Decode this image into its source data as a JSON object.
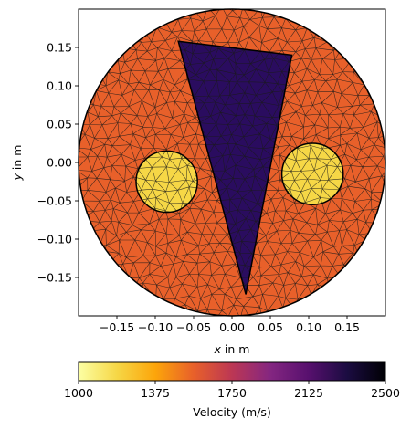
{
  "chart_data": {
    "type": "heatmap",
    "title": "",
    "xlabel": "x in m",
    "ylabel": "y in m",
    "xlim": [
      -0.2,
      0.2
    ],
    "ylim": [
      -0.2,
      0.2
    ],
    "x_ticks": [
      -0.15,
      -0.1,
      -0.05,
      0.0,
      0.05,
      0.1,
      0.15
    ],
    "x_tick_labels": [
      "−0.15",
      "−0.10",
      "−0.05",
      "0.00",
      "0.05",
      "0.10",
      "0.15"
    ],
    "y_ticks": [
      0.15,
      0.1,
      0.05,
      0.0,
      -0.05,
      -0.1,
      -0.15
    ],
    "y_tick_labels": [
      "0.15",
      "0.10",
      "0.05",
      "0.00",
      "−0.05",
      "−0.10",
      "−0.15"
    ],
    "regions": [
      {
        "name": "background disk",
        "shape": "circle",
        "center": [
          0.0,
          0.0
        ],
        "radius": 0.2,
        "velocity": 1600,
        "color": "#e8602a"
      },
      {
        "name": "left inclusion",
        "shape": "circle",
        "center": [
          -0.085,
          -0.025
        ],
        "radius": 0.04,
        "velocity": 1100,
        "color": "#f6d746"
      },
      {
        "name": "right inclusion",
        "shape": "circle",
        "center": [
          0.105,
          -0.015
        ],
        "radius": 0.04,
        "velocity": 1100,
        "color": "#f6d746"
      },
      {
        "name": "triangular anomaly",
        "shape": "polygon",
        "vertices": [
          [
            -0.07,
            0.158
          ],
          [
            0.078,
            0.14
          ],
          [
            0.018,
            -0.172
          ]
        ],
        "velocity": 2250,
        "color": "#2a0c5f"
      }
    ],
    "colorbar": {
      "label": "Velocity (m/s)",
      "min": 1000,
      "max": 2500,
      "ticks": [
        1000,
        1375,
        1750,
        2125,
        2500
      ],
      "tick_labels": [
        "1000",
        "1375",
        "1750",
        "2125",
        "2500"
      ],
      "colormap": "inferno_r",
      "stops": [
        "#fcffa4",
        "#f6d746",
        "#fca50a",
        "#e8602a",
        "#bc3754",
        "#842681",
        "#57106e",
        "#1b0c41",
        "#000004"
      ]
    }
  }
}
